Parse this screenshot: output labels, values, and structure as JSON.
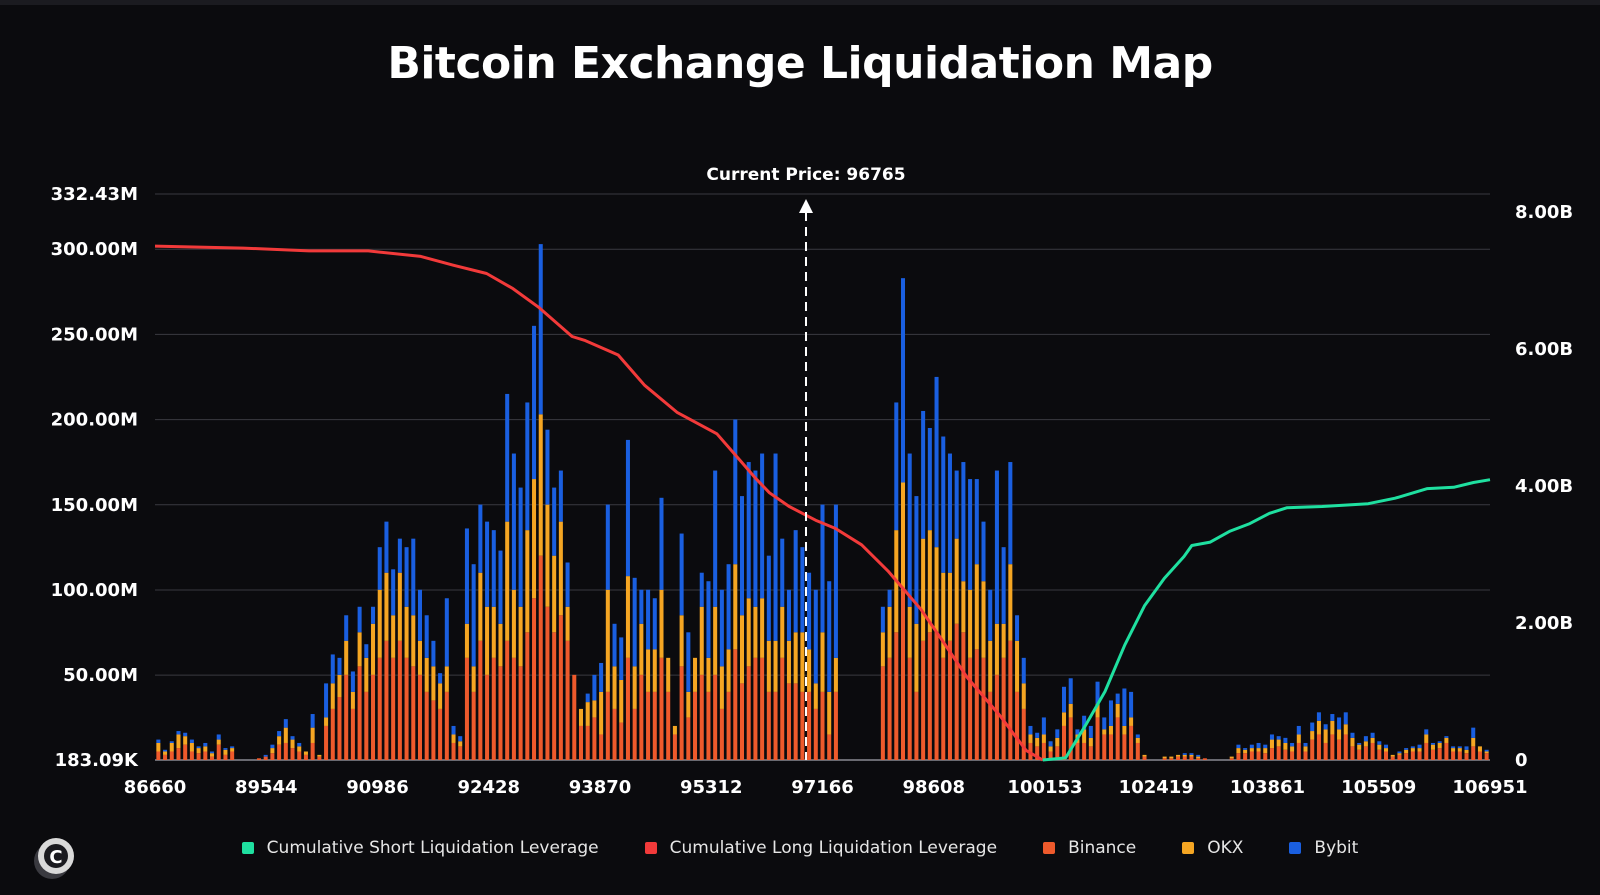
{
  "colors": {
    "background": "#0b0b0e",
    "grid": "#3a3a40",
    "binance": "#ee5a2c",
    "okx": "#f5a623",
    "bybit": "#1a5fe0",
    "short_line": "#1fe0a0",
    "long_line": "#f23a3a"
  },
  "chart_data": {
    "type": "bar",
    "title": "Bitcoin Exchange Liquidation Map",
    "annotation": "Current Price: 96765",
    "current_price": 96765,
    "x_tick_labels": [
      "86660",
      "89544",
      "90986",
      "92428",
      "93870",
      "95312",
      "97166",
      "98608",
      "100153",
      "102419",
      "103861",
      "105509",
      "106951"
    ],
    "left_axis": {
      "tick_labels": [
        "183.09K",
        "50.00M",
        "100.00M",
        "150.00M",
        "200.00M",
        "250.00M",
        "300.00M",
        "332.43M"
      ],
      "tick_values": [
        0.18309,
        50,
        100,
        150,
        200,
        250,
        300,
        332.43
      ],
      "range": [
        0.18309,
        332.43
      ],
      "unit": "M"
    },
    "right_axis": {
      "tick_labels": [
        "0",
        "2.00B",
        "4.00B",
        "6.00B",
        "8.00B"
      ],
      "tick_values": [
        0,
        2,
        4,
        6,
        8
      ],
      "range": [
        0,
        8.26
      ],
      "unit": "B"
    },
    "bar_series_names": [
      "Binance",
      "OKX",
      "Bybit"
    ],
    "bars_stacked_millions": [
      [
        5,
        5,
        2
      ],
      [
        3,
        2,
        1
      ],
      [
        5,
        5,
        1
      ],
      [
        7,
        8,
        2
      ],
      [
        9,
        5,
        2
      ],
      [
        5,
        5,
        2
      ],
      [
        4,
        3,
        1
      ],
      [
        5,
        3,
        2
      ],
      [
        2,
        2,
        1
      ],
      [
        9,
        3,
        3
      ],
      [
        3,
        3,
        1
      ],
      [
        5,
        2,
        1
      ],
      [
        0,
        0,
        0
      ],
      [
        0,
        0,
        0
      ],
      [
        0,
        0,
        0
      ],
      [
        1,
        0,
        0
      ],
      [
        2,
        0,
        1
      ],
      [
        4,
        3,
        2
      ],
      [
        9,
        5,
        3
      ],
      [
        10,
        9,
        5
      ],
      [
        7,
        5,
        2
      ],
      [
        5,
        3,
        2
      ],
      [
        3,
        2,
        0
      ],
      [
        10,
        9,
        8
      ],
      [
        2,
        1,
        0
      ],
      [
        20,
        5,
        20
      ],
      [
        30,
        15,
        17
      ],
      [
        37,
        13,
        10
      ],
      [
        50,
        20,
        15
      ],
      [
        30,
        10,
        12
      ],
      [
        55,
        20,
        15
      ],
      [
        40,
        20,
        8
      ],
      [
        50,
        30,
        10
      ],
      [
        60,
        40,
        25
      ],
      [
        70,
        40,
        30
      ],
      [
        60,
        25,
        27
      ],
      [
        70,
        40,
        20
      ],
      [
        60,
        30,
        35
      ],
      [
        55,
        30,
        45
      ],
      [
        50,
        20,
        30
      ],
      [
        40,
        20,
        25
      ],
      [
        35,
        20,
        15
      ],
      [
        30,
        15,
        6
      ],
      [
        40,
        15,
        40
      ],
      [
        10,
        5,
        5
      ],
      [
        8,
        3,
        3
      ],
      [
        60,
        20,
        56
      ],
      [
        40,
        15,
        60
      ],
      [
        70,
        40,
        40
      ],
      [
        50,
        40,
        50
      ],
      [
        60,
        30,
        45
      ],
      [
        55,
        25,
        43
      ],
      [
        70,
        70,
        75
      ],
      [
        60,
        40,
        80
      ],
      [
        55,
        35,
        70
      ],
      [
        75,
        60,
        75
      ],
      [
        95,
        70,
        90
      ],
      [
        120,
        83,
        100
      ],
      [
        90,
        60,
        44
      ],
      [
        75,
        45,
        40
      ],
      [
        85,
        55,
        30
      ],
      [
        70,
        20,
        26
      ],
      [
        50,
        0,
        0
      ],
      [
        20,
        10,
        0
      ],
      [
        20,
        14,
        5
      ],
      [
        25,
        10,
        15
      ],
      [
        15,
        25,
        17
      ],
      [
        40,
        60,
        50
      ],
      [
        30,
        25,
        25
      ],
      [
        22,
        25,
        25
      ],
      [
        60,
        48,
        80
      ],
      [
        30,
        25,
        52
      ],
      [
        50,
        30,
        20
      ],
      [
        40,
        25,
        35
      ],
      [
        40,
        25,
        30
      ],
      [
        60,
        40,
        54
      ],
      [
        40,
        20,
        0
      ],
      [
        15,
        5,
        0
      ],
      [
        55,
        30,
        48
      ],
      [
        25,
        15,
        35
      ],
      [
        40,
        20,
        0
      ],
      [
        50,
        40,
        20
      ],
      [
        40,
        20,
        45
      ],
      [
        50,
        40,
        80
      ],
      [
        30,
        25,
        45
      ],
      [
        40,
        25,
        50
      ],
      [
        65,
        50,
        85
      ],
      [
        45,
        40,
        70
      ],
      [
        55,
        40,
        80
      ],
      [
        60,
        30,
        80
      ],
      [
        60,
        35,
        85
      ],
      [
        40,
        30,
        50
      ],
      [
        40,
        30,
        110
      ],
      [
        60,
        30,
        40
      ],
      [
        45,
        25,
        30
      ],
      [
        45,
        30,
        60
      ],
      [
        40,
        35,
        50
      ],
      [
        40,
        25,
        45
      ],
      [
        30,
        15,
        55
      ],
      [
        40,
        35,
        75
      ],
      [
        15,
        25,
        65
      ],
      [
        40,
        20,
        90
      ],
      [
        0,
        0,
        0
      ],
      [
        0,
        0,
        0
      ],
      [
        0,
        0,
        0
      ],
      [
        0,
        0,
        0
      ],
      [
        0,
        0,
        0
      ],
      [
        0,
        0,
        0
      ],
      [
        55,
        20,
        15
      ],
      [
        60,
        30,
        10
      ],
      [
        75,
        60,
        75
      ],
      [
        100,
        63,
        120
      ],
      [
        60,
        30,
        90
      ],
      [
        40,
        40,
        75
      ],
      [
        70,
        60,
        75
      ],
      [
        75,
        60,
        60
      ],
      [
        75,
        50,
        100
      ],
      [
        60,
        50,
        80
      ],
      [
        70,
        40,
        70
      ],
      [
        80,
        50,
        40
      ],
      [
        75,
        30,
        70
      ],
      [
        60,
        40,
        65
      ],
      [
        65,
        50,
        50
      ],
      [
        60,
        45,
        35
      ],
      [
        40,
        30,
        30
      ],
      [
        50,
        30,
        90
      ],
      [
        60,
        20,
        45
      ],
      [
        70,
        45,
        60
      ],
      [
        40,
        30,
        15
      ],
      [
        30,
        15,
        15
      ],
      [
        10,
        5,
        5
      ],
      [
        8,
        5,
        3
      ],
      [
        10,
        5,
        10
      ],
      [
        5,
        3,
        3
      ],
      [
        8,
        5,
        5
      ],
      [
        20,
        8,
        15
      ],
      [
        25,
        8,
        15
      ],
      [
        10,
        5,
        3
      ],
      [
        10,
        8,
        8
      ],
      [
        8,
        5,
        7
      ],
      [
        25,
        8,
        13
      ],
      [
        15,
        3,
        7
      ],
      [
        15,
        5,
        15
      ],
      [
        25,
        8,
        6
      ],
      [
        15,
        5,
        22
      ],
      [
        20,
        5,
        15
      ],
      [
        10,
        3,
        2
      ],
      [
        2,
        1,
        0
      ],
      [
        0,
        0,
        0
      ],
      [
        0,
        0,
        0
      ],
      [
        1,
        1,
        0
      ],
      [
        1,
        1,
        0
      ],
      [
        2,
        1,
        0
      ],
      [
        2,
        1,
        1
      ],
      [
        2,
        1,
        1
      ],
      [
        1,
        1,
        1
      ],
      [
        1,
        0,
        0
      ],
      [
        0,
        0,
        0
      ],
      [
        0,
        0,
        0
      ],
      [
        0,
        0,
        0
      ],
      [
        1,
        1,
        0
      ],
      [
        4,
        3,
        2
      ],
      [
        4,
        2,
        1
      ],
      [
        5,
        2,
        2
      ],
      [
        5,
        2,
        3
      ],
      [
        4,
        3,
        2
      ],
      [
        7,
        5,
        3
      ],
      [
        8,
        4,
        2
      ],
      [
        6,
        4,
        3
      ],
      [
        5,
        3,
        2
      ],
      [
        10,
        5,
        5
      ],
      [
        5,
        3,
        2
      ],
      [
        12,
        5,
        5
      ],
      [
        15,
        8,
        5
      ],
      [
        10,
        8,
        3
      ],
      [
        15,
        8,
        4
      ],
      [
        12,
        6,
        7
      ],
      [
        15,
        6,
        7
      ],
      [
        8,
        5,
        3
      ],
      [
        6,
        3,
        1
      ],
      [
        8,
        3,
        3
      ],
      [
        10,
        3,
        3
      ],
      [
        6,
        3,
        2
      ],
      [
        5,
        2,
        2
      ],
      [
        2,
        1,
        0
      ],
      [
        3,
        1,
        1
      ],
      [
        4,
        2,
        1
      ],
      [
        5,
        2,
        1
      ],
      [
        5,
        2,
        2
      ],
      [
        10,
        5,
        3
      ],
      [
        6,
        3,
        1
      ],
      [
        7,
        3,
        1
      ],
      [
        10,
        3,
        1
      ],
      [
        5,
        2,
        1
      ],
      [
        5,
        2,
        1
      ],
      [
        4,
        2,
        2
      ],
      [
        8,
        5,
        6
      ],
      [
        5,
        3,
        0
      ],
      [
        4,
        1,
        1
      ]
    ],
    "long_line_billions": [
      [
        86660,
        7.5
      ],
      [
        88000,
        7.47
      ],
      [
        89000,
        7.43
      ],
      [
        89900,
        7.43
      ],
      [
        90700,
        7.35
      ],
      [
        91200,
        7.22
      ],
      [
        91700,
        7.1
      ],
      [
        92100,
        6.88
      ],
      [
        92500,
        6.6
      ],
      [
        93000,
        6.18
      ],
      [
        93200,
        6.12
      ],
      [
        93700,
        5.91
      ],
      [
        94100,
        5.47
      ],
      [
        94600,
        5.07
      ],
      [
        95200,
        4.76
      ],
      [
        95600,
        4.32
      ],
      [
        95800,
        4.1
      ],
      [
        96000,
        3.9
      ],
      [
        96300,
        3.7
      ],
      [
        96700,
        3.5
      ],
      [
        97000,
        3.38
      ],
      [
        97400,
        3.14
      ],
      [
        97800,
        2.76
      ],
      [
        98300,
        2.2
      ],
      [
        98600,
        1.78
      ],
      [
        99000,
        1.21
      ],
      [
        99500,
        0.65
      ],
      [
        99900,
        0.14
      ],
      [
        100153,
        0.0
      ]
    ],
    "short_line_billions": [
      [
        100153,
        0.0
      ],
      [
        100500,
        0.03
      ],
      [
        100800,
        0.5
      ],
      [
        101100,
        1.0
      ],
      [
        101400,
        1.68
      ],
      [
        101700,
        2.25
      ],
      [
        102000,
        2.65
      ],
      [
        102300,
        2.97
      ],
      [
        102419,
        3.13
      ],
      [
        102700,
        3.18
      ],
      [
        103000,
        3.34
      ],
      [
        103300,
        3.45
      ],
      [
        103600,
        3.6
      ],
      [
        103861,
        3.68
      ],
      [
        104400,
        3.7
      ],
      [
        105100,
        3.74
      ],
      [
        105509,
        3.82
      ],
      [
        106000,
        3.96
      ],
      [
        106400,
        3.98
      ],
      [
        106700,
        4.05
      ],
      [
        106951,
        4.09
      ]
    ]
  },
  "legend": {
    "items": [
      {
        "label": "Cumulative Short Liquidation Leverage"
      },
      {
        "label": "Cumulative Long Liquidation Leverage"
      },
      {
        "label": "Binance"
      },
      {
        "label": "OKX"
      },
      {
        "label": "Bybit"
      }
    ]
  },
  "logo_glyph": "C"
}
